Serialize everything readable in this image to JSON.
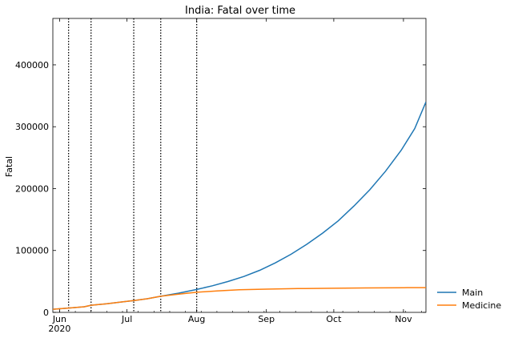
{
  "chart_data": {
    "type": "line",
    "title": "India: Fatal over time",
    "xlabel": "",
    "ylabel": "Fatal",
    "x_range": [
      "2020-05-29",
      "2020-11-11"
    ],
    "ylim": [
      0,
      475000
    ],
    "x_ticks": [
      {
        "date": "2020-06-01",
        "label": "Jun",
        "sublabel": "2020"
      },
      {
        "date": "2020-07-01",
        "label": "Jul",
        "sublabel": ""
      },
      {
        "date": "2020-08-01",
        "label": "Aug",
        "sublabel": ""
      },
      {
        "date": "2020-09-01",
        "label": "Sep",
        "sublabel": ""
      },
      {
        "date": "2020-10-01",
        "label": "Oct",
        "sublabel": ""
      },
      {
        "date": "2020-11-01",
        "label": "Nov",
        "sublabel": ""
      }
    ],
    "y_ticks": [
      {
        "value": 0,
        "label": "0"
      },
      {
        "value": 100000,
        "label": "100000"
      },
      {
        "value": 200000,
        "label": "200000"
      },
      {
        "value": 300000,
        "label": "300000"
      },
      {
        "value": 400000,
        "label": "400000"
      }
    ],
    "change_points": [
      "2020-06-05",
      "2020-06-15",
      "2020-07-04",
      "2020-07-16",
      "2020-08-01"
    ],
    "grid": false,
    "legend_position": "outside-right-bottom",
    "series": [
      {
        "name": "Main",
        "color": "#1f77b4",
        "points": [
          {
            "x": "2020-05-29",
            "y": 5000
          },
          {
            "x": "2020-06-05",
            "y": 7000
          },
          {
            "x": "2020-06-12",
            "y": 9000
          },
          {
            "x": "2020-06-15",
            "y": 11500
          },
          {
            "x": "2020-06-22",
            "y": 14000
          },
          {
            "x": "2020-06-29",
            "y": 17000
          },
          {
            "x": "2020-07-04",
            "y": 19000
          },
          {
            "x": "2020-07-10",
            "y": 22000
          },
          {
            "x": "2020-07-16",
            "y": 26000
          },
          {
            "x": "2020-07-24",
            "y": 31000
          },
          {
            "x": "2020-08-01",
            "y": 37000
          },
          {
            "x": "2020-08-08",
            "y": 43000
          },
          {
            "x": "2020-08-15",
            "y": 50000
          },
          {
            "x": "2020-08-22",
            "y": 58000
          },
          {
            "x": "2020-08-29",
            "y": 68000
          },
          {
            "x": "2020-09-05",
            "y": 80000
          },
          {
            "x": "2020-09-12",
            "y": 94000
          },
          {
            "x": "2020-09-19",
            "y": 110000
          },
          {
            "x": "2020-09-26",
            "y": 128000
          },
          {
            "x": "2020-10-03",
            "y": 148000
          },
          {
            "x": "2020-10-10",
            "y": 172000
          },
          {
            "x": "2020-10-17",
            "y": 198000
          },
          {
            "x": "2020-10-24",
            "y": 228000
          },
          {
            "x": "2020-10-31",
            "y": 262000
          },
          {
            "x": "2020-11-06",
            "y": 297000
          },
          {
            "x": "2020-11-11",
            "y": 340000
          }
        ]
      },
      {
        "name": "Medicine",
        "color": "#ff7f0e",
        "points": [
          {
            "x": "2020-05-29",
            "y": 5000
          },
          {
            "x": "2020-06-05",
            "y": 7000
          },
          {
            "x": "2020-06-12",
            "y": 9000
          },
          {
            "x": "2020-06-15",
            "y": 11500
          },
          {
            "x": "2020-06-22",
            "y": 14000
          },
          {
            "x": "2020-06-29",
            "y": 17000
          },
          {
            "x": "2020-07-04",
            "y": 19000
          },
          {
            "x": "2020-07-10",
            "y": 22000
          },
          {
            "x": "2020-07-16",
            "y": 26000
          },
          {
            "x": "2020-07-24",
            "y": 29500
          },
          {
            "x": "2020-08-01",
            "y": 32500
          },
          {
            "x": "2020-08-10",
            "y": 34500
          },
          {
            "x": "2020-08-20",
            "y": 36500
          },
          {
            "x": "2020-09-01",
            "y": 37500
          },
          {
            "x": "2020-09-15",
            "y": 38500
          },
          {
            "x": "2020-10-01",
            "y": 39000
          },
          {
            "x": "2020-10-15",
            "y": 39500
          },
          {
            "x": "2020-11-01",
            "y": 39800
          },
          {
            "x": "2020-11-11",
            "y": 40000
          }
        ]
      }
    ]
  }
}
